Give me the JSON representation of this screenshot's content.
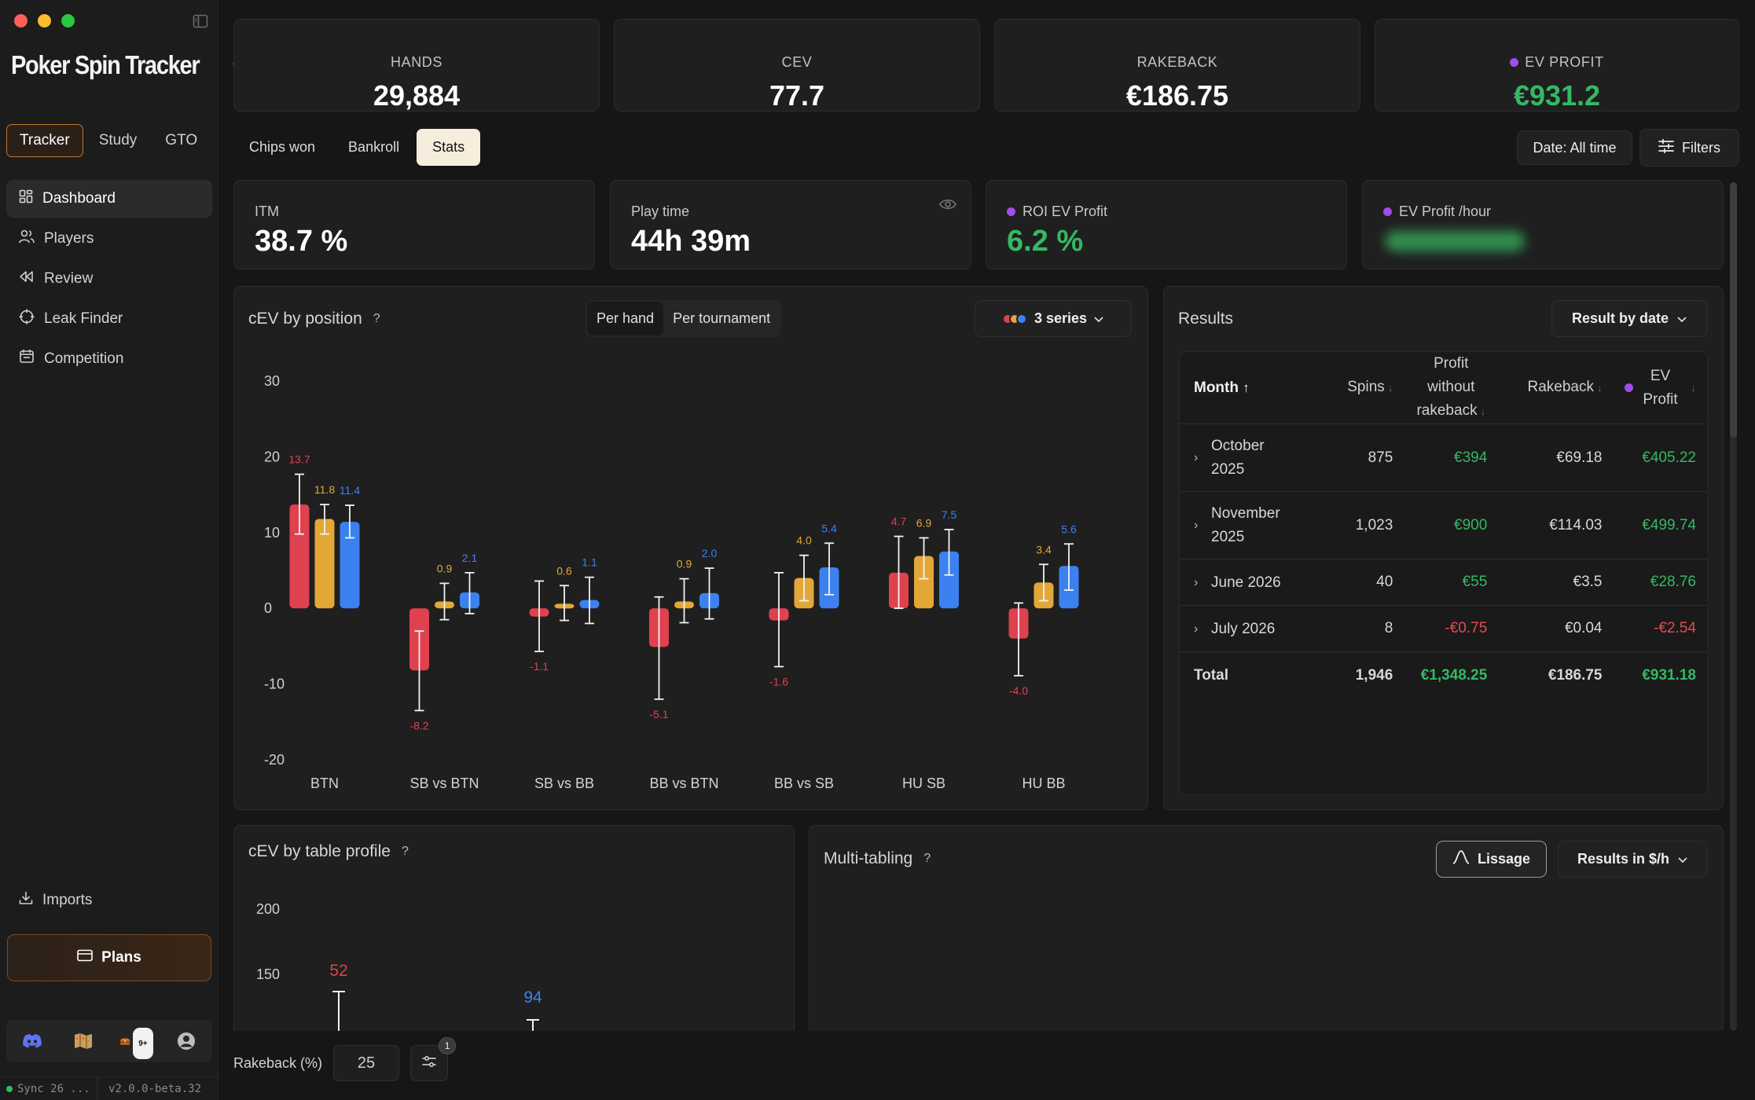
{
  "sidebar": {
    "brand": "Poker Spin Tracker",
    "modes": [
      "Tracker",
      "Study",
      "GTO"
    ],
    "nav": [
      "Dashboard",
      "Players",
      "Review",
      "Leak Finder",
      "Competition"
    ],
    "imports": "Imports",
    "plans": "Plans",
    "notification_badge": "9+",
    "sync_status": "Sync 26 ...",
    "version": "v2.0.0-beta.32"
  },
  "kpis": [
    {
      "label": "HANDS",
      "value": "29,884"
    },
    {
      "label": "CEV",
      "value": "77.7"
    },
    {
      "label": "RAKEBACK",
      "value": "€186.75"
    },
    {
      "label": "EV PROFIT",
      "value": "€931.2"
    }
  ],
  "view_tabs": [
    "Chips won",
    "Bankroll",
    "Stats"
  ],
  "date_filter": "Date: All time",
  "filters_label": "Filters",
  "stats": {
    "itm": {
      "label": "ITM",
      "value": "38.7 %"
    },
    "play_time": {
      "label": "Play time",
      "value": "44h 39m"
    },
    "roi": {
      "label": "ROI EV Profit",
      "value": "6.2 %"
    },
    "ev_hour": {
      "label": "EV Profit /hour"
    }
  },
  "cev_position": {
    "title": "cEV by position",
    "help": "?",
    "toggle": [
      "Per hand",
      "Per tournament"
    ],
    "series_label": "3 series"
  },
  "results": {
    "title": "Results",
    "group_by": "Result by date",
    "columns": {
      "month": "Month",
      "spins": "Spins",
      "profit": "Profit without rakeback",
      "rakeback": "Rakeback",
      "ev_profit": "EV Profit"
    },
    "rows": [
      {
        "month": "October 2025",
        "spins": "875",
        "profit": "€394",
        "rakeback": "€69.18",
        "ev": "€405.22"
      },
      {
        "month": "November 2025",
        "spins": "1,023",
        "profit": "€900",
        "rakeback": "€114.03",
        "ev": "€499.74"
      },
      {
        "month": "June 2026",
        "spins": "40",
        "profit": "€55",
        "rakeback": "€3.5",
        "ev": "€28.76"
      },
      {
        "month": "July 2026",
        "spins": "8",
        "profit": "-€0.75",
        "rakeback": "€0.04",
        "ev": "-€2.54"
      }
    ],
    "total": {
      "label": "Total",
      "spins": "1,946",
      "profit": "€1,348.25",
      "rakeback": "€186.75",
      "ev": "€931.18"
    }
  },
  "table_profile": {
    "title": "cEV by table profile",
    "help": "?"
  },
  "multi_tabling": {
    "title": "Multi-tabling",
    "help": "?",
    "smoothing": "Lissage",
    "unit": "Results in $/h"
  },
  "rakeback_input": {
    "label": "Rakeback (%)",
    "value": "25",
    "badge": "1"
  },
  "colors": {
    "red": "#e0414f",
    "orange": "#e3a738",
    "blue": "#3b82f0",
    "green": "#35b864",
    "accent": "#c2742a",
    "purple": "#a34de8"
  },
  "chart_data": [
    {
      "type": "bar",
      "categories": [
        "BTN",
        "SB vs BTN",
        "SB vs BB",
        "BB vs BTN",
        "BB vs SB",
        "HU SB",
        "HU BB"
      ],
      "series": [
        {
          "color": "#e0414f",
          "values": [
            13.7,
            -8.2,
            -1.1,
            -5.1,
            -1.6,
            4.7,
            -4.0
          ],
          "err_low": [
            9.8,
            -13.5,
            -5.7,
            -12.0,
            -7.7,
            0.0,
            -8.9
          ],
          "err_high": [
            17.7,
            -3.0,
            3.6,
            1.5,
            4.7,
            9.5,
            0.7
          ]
        },
        {
          "color": "#e3a738",
          "values": [
            11.8,
            0.9,
            0.6,
            0.9,
            4.0,
            6.9,
            3.4
          ],
          "err_low": [
            9.8,
            -1.5,
            -1.6,
            -1.9,
            1.0,
            3.9,
            1.0
          ],
          "err_high": [
            13.7,
            3.3,
            3.0,
            3.9,
            7.0,
            9.3,
            5.8
          ]
        },
        {
          "color": "#3b82f0",
          "values": [
            11.4,
            2.1,
            1.1,
            2.0,
            5.4,
            7.5,
            5.6
          ],
          "err_low": [
            9.3,
            -0.7,
            -2.0,
            -1.4,
            1.8,
            4.4,
            2.4
          ],
          "err_high": [
            13.6,
            4.7,
            4.1,
            5.3,
            8.6,
            10.4,
            8.5
          ]
        }
      ],
      "yticks": [
        30,
        20,
        10,
        0,
        -10,
        -20
      ],
      "ylim": [
        -20,
        30
      ]
    },
    {
      "type": "bar",
      "yticks": [
        200,
        150
      ],
      "visible_labels": [
        {
          "value": "52",
          "color": "#e0414f"
        },
        {
          "value": "94",
          "color": "#3b82f0"
        }
      ]
    }
  ]
}
